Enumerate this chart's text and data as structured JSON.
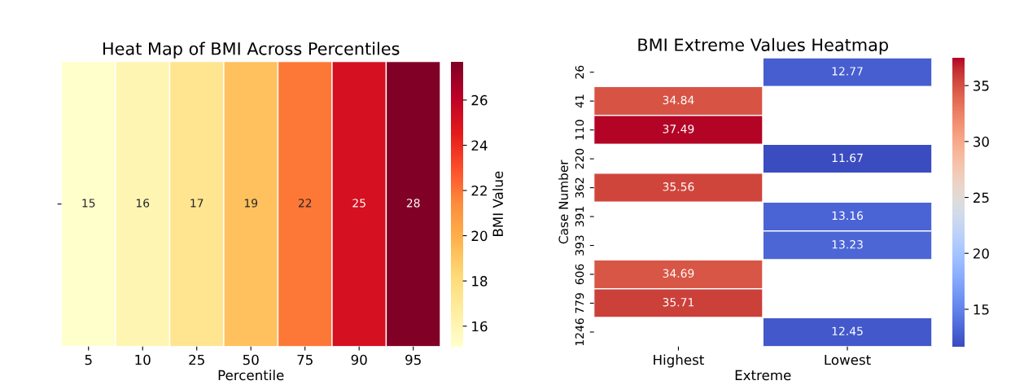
{
  "chart_data": [
    {
      "type": "heatmap",
      "title": "Heat Map of BMI Across Percentiles",
      "xlabel": "Percentile",
      "clabel": "BMI Value",
      "categories": [
        "5",
        "10",
        "25",
        "50",
        "75",
        "90",
        "95"
      ],
      "y_categories": [
        null
      ],
      "cells": [
        [
          15.1,
          16.0,
          17.3,
          19.2,
          21.9,
          25.1,
          27.7
        ]
      ],
      "cell_labels": [
        [
          "15",
          "16",
          "17",
          "19",
          "22",
          "25",
          "28"
        ]
      ],
      "clim": [
        15.1,
        27.7
      ],
      "cticks": [
        16,
        18,
        20,
        22,
        24,
        26
      ]
    },
    {
      "type": "heatmap",
      "title": "BMI Extreme Values Heatmap",
      "xlabel": "Extreme",
      "ylabel": "Case Number",
      "categories": [
        "Highest",
        "Lowest"
      ],
      "y_categories": [
        "26",
        "41",
        "110",
        "220",
        "362",
        "391",
        "393",
        "606",
        "779",
        "1246"
      ],
      "cells": [
        [
          null,
          12.77
        ],
        [
          34.84,
          null
        ],
        [
          37.49,
          null
        ],
        [
          null,
          11.67
        ],
        [
          35.56,
          null
        ],
        [
          null,
          13.16
        ],
        [
          null,
          13.23
        ],
        [
          34.69,
          null
        ],
        [
          35.71,
          null
        ],
        [
          null,
          12.45
        ]
      ],
      "data_labels": true,
      "clim": [
        11.67,
        37.49
      ],
      "cticks": [
        15,
        20,
        25,
        30,
        35
      ]
    }
  ]
}
